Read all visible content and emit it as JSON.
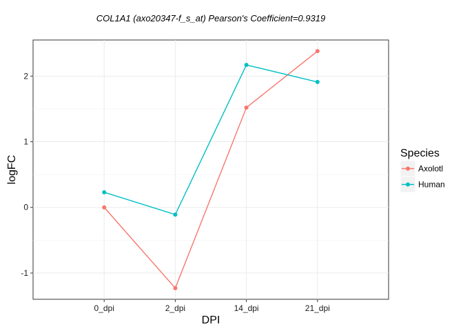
{
  "chart_data": {
    "type": "line",
    "title": "COL1A1  (axo20347-f_s_at) Pearson's Coefficient=0.9319",
    "xlabel": "DPI",
    "ylabel": "logFC",
    "categories": [
      "0_dpi",
      "2_dpi",
      "14_dpi",
      "21_dpi"
    ],
    "ylim": [
      -1.4,
      2.55
    ],
    "yticks": [
      -1,
      0,
      1,
      2
    ],
    "grid": true,
    "legend": {
      "title": "Species",
      "position": "right"
    },
    "series": [
      {
        "name": "Axolotl",
        "color": "#F8766D",
        "values": [
          0.0,
          -1.23,
          1.52,
          2.38
        ]
      },
      {
        "name": "Human",
        "color": "#00BFC4",
        "values": [
          0.23,
          -0.11,
          2.17,
          1.91
        ]
      }
    ]
  }
}
